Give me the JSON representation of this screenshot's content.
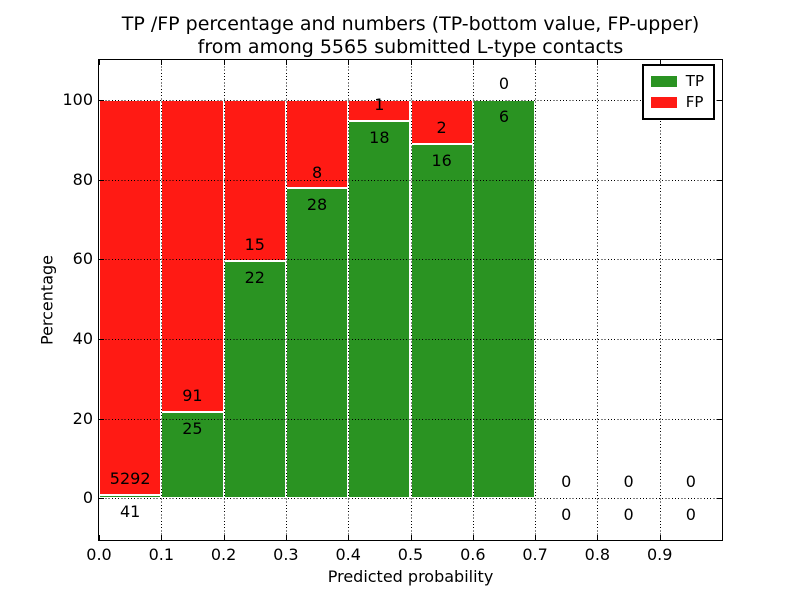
{
  "chart_data": {
    "type": "bar",
    "subtype": "stacked-100-percent-histogram",
    "title_line1": "TP /FP percentage and numbers (TP-bottom value, FP-upper)",
    "title_line2": "from among 5565 submitted L-type contacts",
    "title": "TP /FP percentage and numbers (TP-bottom value, FP-upper) from among 5565 submitted L-type contacts",
    "xlabel": "Predicted probability",
    "ylabel": "Percentage",
    "xlim": [
      0.0,
      1.0
    ],
    "ylim": [
      -10.5,
      110
    ],
    "xtick_values": [
      0.0,
      0.1,
      0.2,
      0.3,
      0.4,
      0.5,
      0.6,
      0.7,
      0.8,
      0.9
    ],
    "xtick_labels": [
      "0.0",
      "0.1",
      "0.2",
      "0.3",
      "0.4",
      "0.5",
      "0.6",
      "0.7",
      "0.8",
      "0.9"
    ],
    "ytick_values": [
      0,
      20,
      40,
      60,
      80,
      100
    ],
    "ytick_labels": [
      "0",
      "20",
      "40",
      "60",
      "80",
      "100"
    ],
    "grid": "dotted",
    "tick_direction": "in",
    "bin_width": 0.1,
    "bin_starts": [
      0.0,
      0.1,
      0.2,
      0.3,
      0.4,
      0.5,
      0.6,
      0.7,
      0.8,
      0.9
    ],
    "series": [
      {
        "name": "TP",
        "position": "bottom",
        "color": "#2a9322",
        "counts": [
          41,
          25,
          22,
          28,
          18,
          16,
          6,
          0,
          0,
          0
        ]
      },
      {
        "name": "FP",
        "position": "top",
        "color": "#ff1a14",
        "counts": [
          5292,
          91,
          15,
          8,
          1,
          2,
          0,
          0,
          0,
          0
        ]
      }
    ],
    "tp_percent_by_bin": [
      0.77,
      21.55,
      59.46,
      77.78,
      94.74,
      88.89,
      100.0,
      0,
      0,
      0
    ],
    "total_contacts": 5565,
    "legend": {
      "position": "upper-right",
      "items": [
        {
          "label": "TP",
          "color": "#2a9322"
        },
        {
          "label": "FP",
          "color": "#ff1a14"
        }
      ]
    }
  }
}
